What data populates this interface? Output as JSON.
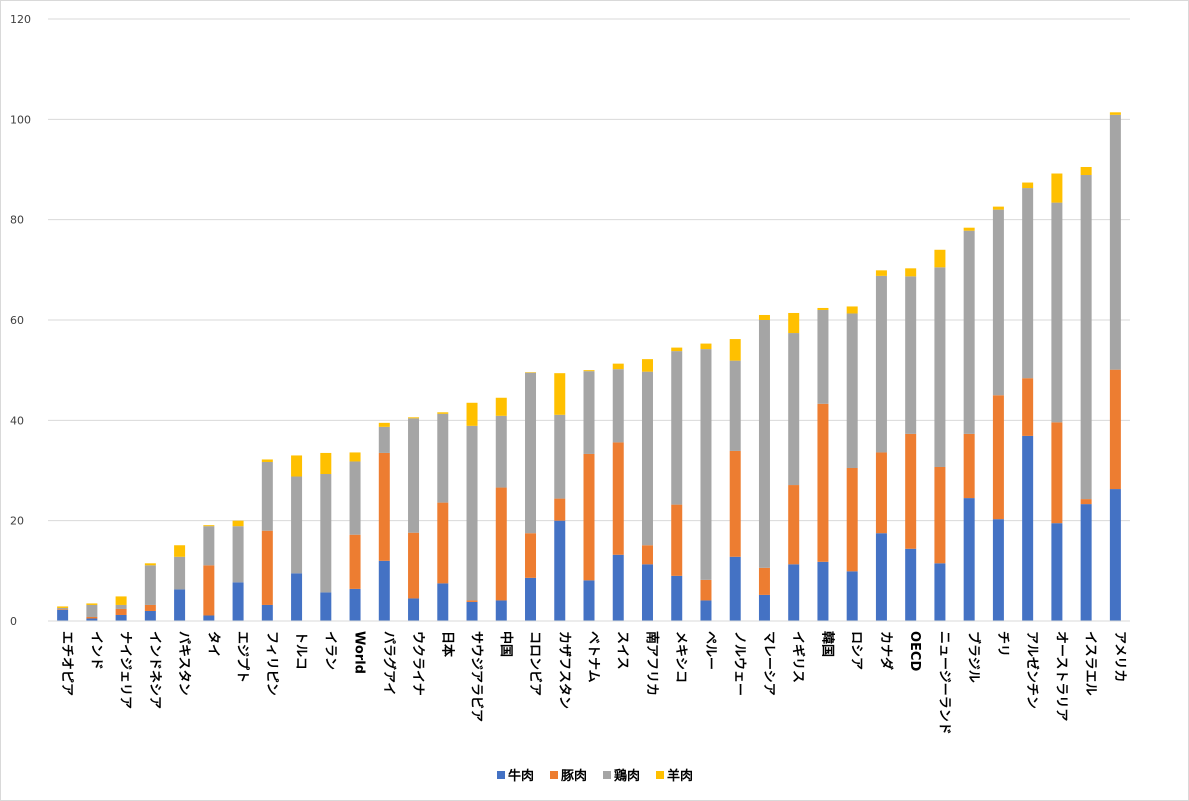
{
  "chart_data": {
    "type": "bar",
    "stacked": true,
    "categories": [
      "エチオピア",
      "インド",
      "ナイジェリア",
      "インドネシア",
      "パキスタン",
      "タイ",
      "エジプト",
      "フィリピン",
      "トルコ",
      "イラン",
      "World",
      "パラグアイ",
      "ウクライナ",
      "日本",
      "サウジアラビア",
      "中国",
      "コロンビア",
      "カザフスタン",
      "ベトナム",
      "スイス",
      "南アフリカ",
      "メキシコ",
      "ペルー",
      "ノルウェー",
      "マレーシア",
      "イギリス",
      "韓国",
      "ロシア",
      "カナダ",
      "OECD",
      "ニュージーランド",
      "ブラジル",
      "チリ",
      "アルゼンチン",
      "オーストラリア",
      "イスラエル",
      "アメリカ"
    ],
    "series": [
      {
        "name": "牛肉",
        "color": "#4472c4",
        "values": [
          2.2,
          0.5,
          1.2,
          2.0,
          6.3,
          1.1,
          7.7,
          3.2,
          9.5,
          5.7,
          6.4,
          12.0,
          4.5,
          7.5,
          3.8,
          4.1,
          8.6,
          20.0,
          8.1,
          13.2,
          11.3,
          9.0,
          4.1,
          12.8,
          5.2,
          11.3,
          11.8,
          9.9,
          17.5,
          14.4,
          11.5,
          24.5,
          20.3,
          36.9,
          19.5,
          23.3,
          26.3
        ]
      },
      {
        "name": "豚肉",
        "color": "#ed7d31",
        "values": [
          0.1,
          0.3,
          1.2,
          1.2,
          0.0,
          10.0,
          0.0,
          14.8,
          0.0,
          0.0,
          10.8,
          21.5,
          13.1,
          16.1,
          0.3,
          22.5,
          8.9,
          4.4,
          25.2,
          22.4,
          3.8,
          14.2,
          4.1,
          21.1,
          5.4,
          15.8,
          31.5,
          20.6,
          16.1,
          22.9,
          19.2,
          12.8,
          24.7,
          11.5,
          20.1,
          1.0,
          23.8
        ]
      },
      {
        "name": "鶏肉",
        "color": "#a5a5a5",
        "values": [
          0.3,
          2.4,
          0.8,
          7.9,
          6.5,
          7.8,
          11.2,
          13.7,
          19.3,
          23.6,
          14.6,
          5.2,
          22.8,
          17.7,
          34.8,
          14.3,
          32.0,
          16.7,
          16.5,
          14.6,
          34.6,
          30.6,
          46.0,
          18.0,
          49.4,
          30.3,
          18.7,
          30.8,
          35.2,
          31.4,
          39.8,
          40.5,
          37.0,
          37.9,
          43.8,
          64.6,
          50.8
        ]
      },
      {
        "name": "羊肉",
        "color": "#ffc000",
        "values": [
          0.3,
          0.3,
          1.7,
          0.4,
          2.3,
          0.2,
          1.1,
          0.5,
          4.2,
          4.2,
          1.8,
          0.8,
          0.2,
          0.3,
          4.6,
          3.6,
          0.1,
          8.3,
          0.2,
          1.1,
          2.5,
          0.7,
          1.1,
          4.3,
          1.0,
          4.0,
          0.4,
          1.4,
          1.1,
          1.6,
          3.5,
          0.6,
          0.6,
          1.1,
          5.8,
          1.6,
          0.5
        ]
      }
    ],
    "ylim": [
      0,
      120
    ],
    "yticks": [
      "0",
      "20",
      "40",
      "60",
      "80",
      "100",
      "120"
    ],
    "grid": true,
    "legend_position": "bottom"
  }
}
